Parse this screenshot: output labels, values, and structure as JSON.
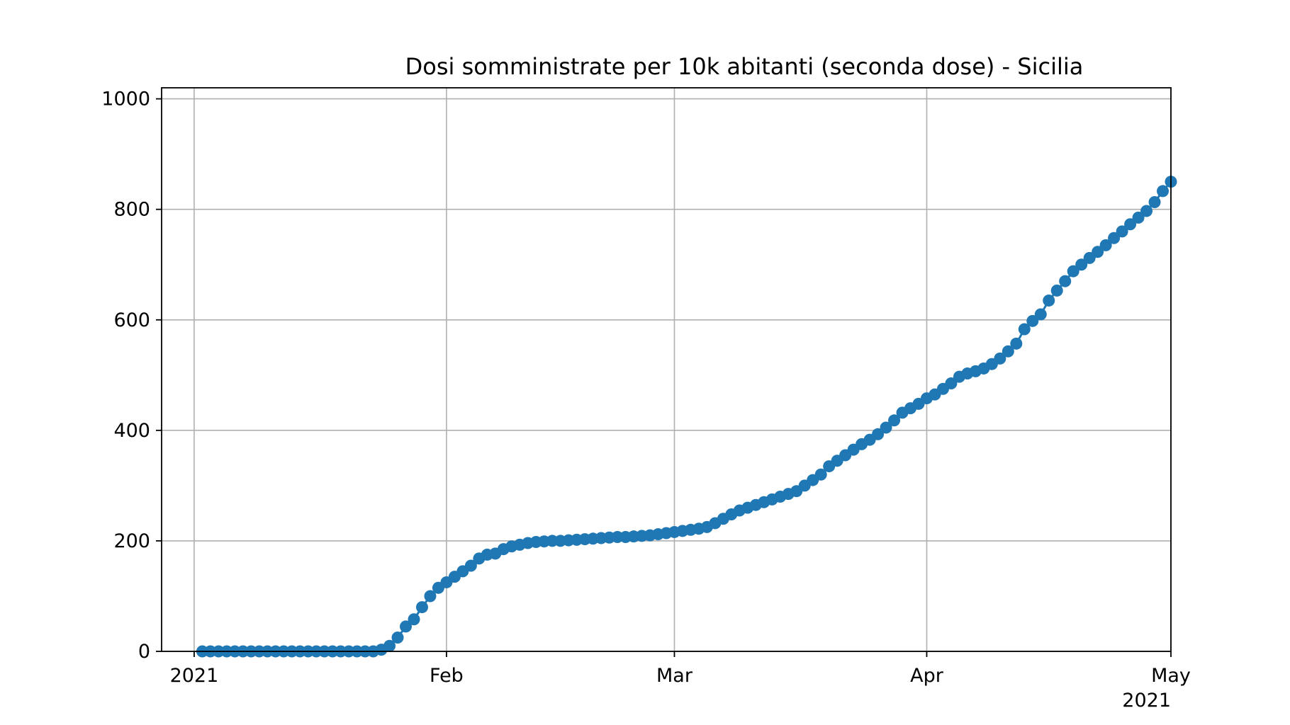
{
  "chart_data": {
    "type": "line",
    "title": "Dosi somministrate per 10k abitanti (seconda dose) - Sicilia",
    "xlabel": "",
    "ylabel": "",
    "x_type": "date",
    "xlim": [
      "2020-12-28",
      "2021-05-01"
    ],
    "ylim": [
      0,
      1020
    ],
    "grid": true,
    "marker": "circle",
    "color": "#1f77b4",
    "y_ticks": [
      0,
      200,
      400,
      600,
      800,
      1000
    ],
    "x_ticks": [
      {
        "date": "2021-01-01",
        "label": "2021"
      },
      {
        "date": "2021-02-01",
        "label": "Feb"
      },
      {
        "date": "2021-03-01",
        "label": "Mar"
      },
      {
        "date": "2021-04-01",
        "label": "Apr"
      },
      {
        "date": "2021-05-01",
        "label": "May"
      }
    ],
    "x_offset_label": "2021",
    "series": [
      {
        "x_start": "2021-01-02",
        "values": [
          0,
          0,
          0,
          0,
          0,
          0,
          0,
          0,
          0,
          0,
          0,
          0,
          0,
          0,
          0,
          0,
          0,
          0,
          0,
          0,
          0,
          0,
          3,
          10,
          25,
          45,
          58,
          80,
          100,
          115,
          125,
          135,
          145,
          155,
          168,
          175,
          177,
          185,
          190,
          193,
          196,
          198,
          199,
          200,
          200,
          201,
          202,
          203,
          204,
          205,
          206,
          207,
          207,
          208,
          209,
          210,
          212,
          214,
          216,
          218,
          220,
          222,
          225,
          232,
          240,
          248,
          255,
          260,
          265,
          270,
          275,
          280,
          285,
          290,
          300,
          310,
          320,
          335,
          345,
          355,
          365,
          375,
          383,
          393,
          405,
          418,
          432,
          440,
          448,
          458,
          465,
          475,
          485,
          497,
          503,
          507,
          512,
          520,
          530,
          543,
          557,
          583,
          598,
          610,
          635,
          653,
          670,
          688,
          700,
          712,
          723,
          735,
          748,
          760,
          773,
          785,
          797,
          813,
          833,
          850
        ]
      }
    ]
  }
}
